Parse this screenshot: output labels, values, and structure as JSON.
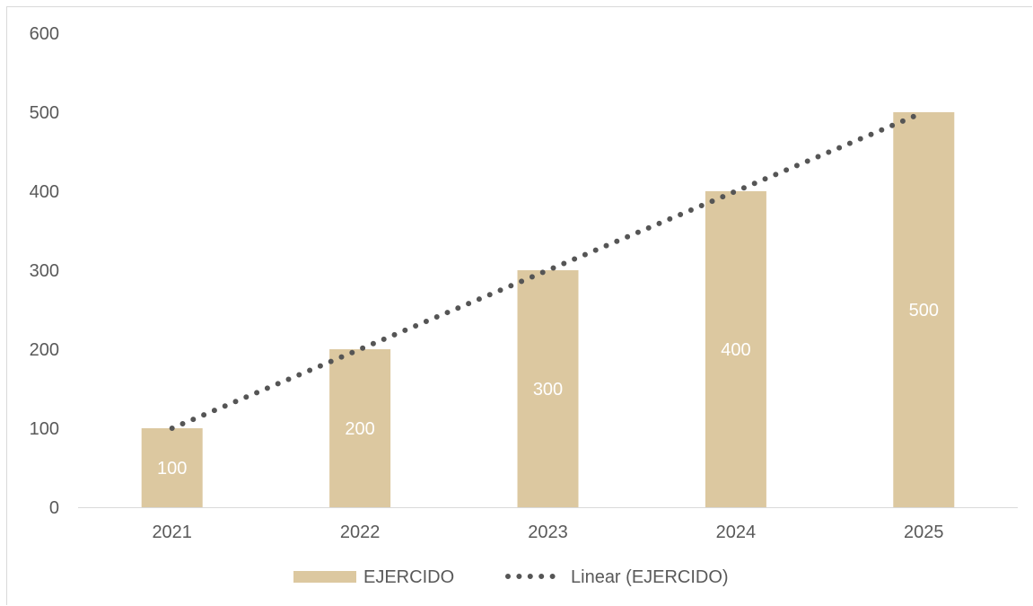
{
  "chart_data": {
    "type": "bar",
    "categories": [
      "2021",
      "2022",
      "2023",
      "2024",
      "2025"
    ],
    "series": [
      {
        "name": "EJERCIDO",
        "values": [
          100,
          200,
          300,
          400,
          500
        ],
        "color": "#dcc8a0"
      }
    ],
    "trendline": {
      "name": "Linear (EJERCIDO)",
      "type": "linear",
      "values": [
        100,
        200,
        300,
        400,
        500
      ],
      "color": "#555555",
      "style": "dotted"
    },
    "title": "",
    "xlabel": "",
    "ylabel": "",
    "ylim": [
      0,
      600
    ],
    "yticks": [
      0,
      100,
      200,
      300,
      400,
      500,
      600
    ],
    "data_labels": [
      "100",
      "200",
      "300",
      "400",
      "500"
    ],
    "grid": false,
    "legend": {
      "position": "bottom",
      "entries": [
        "EJERCIDO",
        "Linear (EJERCIDO)"
      ]
    }
  }
}
